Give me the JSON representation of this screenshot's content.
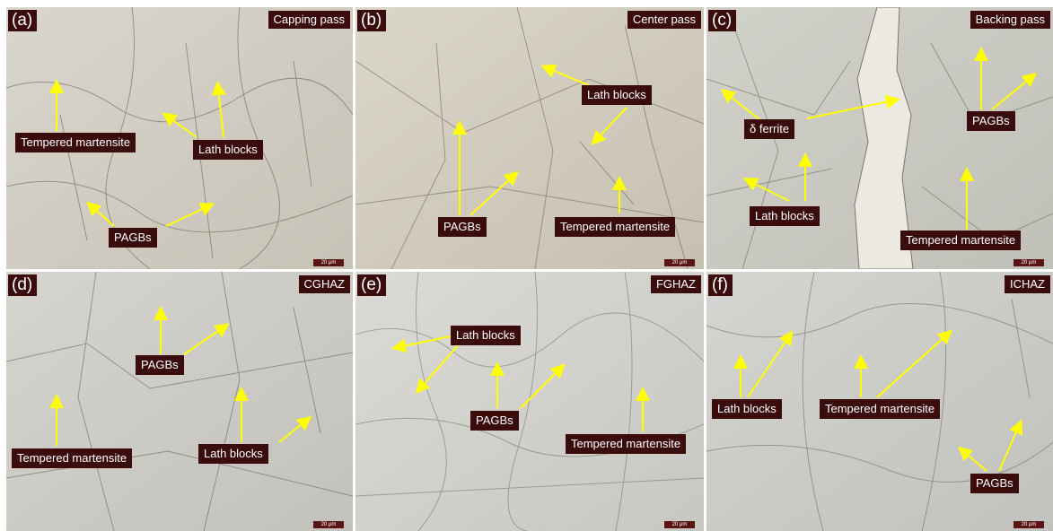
{
  "panels": [
    {
      "id": "a",
      "label": "(a)",
      "title": "Capping pass",
      "scale": "20 μm",
      "notes": [
        "Tempered martensite",
        "Lath blocks",
        "PAGBs"
      ],
      "tone": [
        "#d9d6cd",
        "#cbc7bc"
      ]
    },
    {
      "id": "b",
      "label": "(b)",
      "title": "Center pass",
      "scale": "20 μm",
      "notes": [
        "Lath blocks",
        "PAGBs",
        "Tempered martensite"
      ],
      "tone": [
        "#d8d4c8",
        "#c9c4b5"
      ]
    },
    {
      "id": "c",
      "label": "(c)",
      "title": "Backing pass",
      "scale": "20 μm",
      "notes": [
        "δ ferrite",
        "PAGBs",
        "Lath blocks",
        "Tempered martensite"
      ],
      "tone": [
        "#d3d2cc",
        "#c4c3bc"
      ]
    },
    {
      "id": "d",
      "label": "(d)",
      "title": "CGHAZ",
      "scale": "20 μm",
      "notes": [
        "PAGBs",
        "Tempered martensite",
        "Lath blocks"
      ],
      "tone": [
        "#d5d3cd",
        "#c6c4be"
      ]
    },
    {
      "id": "e",
      "label": "(e)",
      "title": "FGHAZ",
      "scale": "20 μm",
      "notes": [
        "Lath blocks",
        "PAGBs",
        "Tempered martensite"
      ],
      "tone": [
        "#d9d8d4",
        "#cbcac5"
      ]
    },
    {
      "id": "f",
      "label": "(f)",
      "title": "ICHAZ",
      "scale": "20 μm",
      "notes": [
        "Lath blocks",
        "Tempered martensite",
        "PAGBs"
      ],
      "tone": [
        "#d3d3d0",
        "#c4c4c0"
      ]
    }
  ],
  "colors": {
    "label_bg": "#3a0c0c",
    "arrow": "#ffff00"
  }
}
